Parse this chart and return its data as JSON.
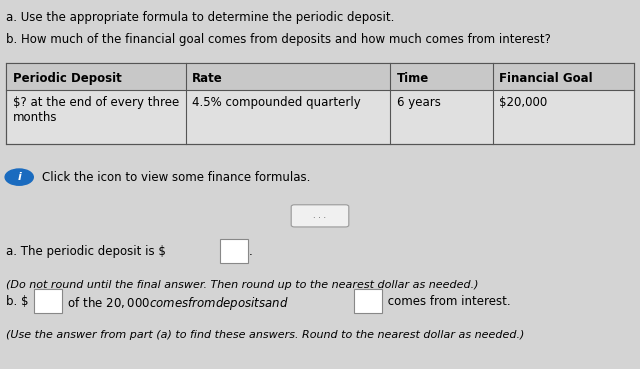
{
  "bg_color": "#d4d4d4",
  "title_lines": [
    "a. Use the appropriate formula to determine the periodic deposit.",
    "b. How much of the financial goal comes from deposits and how much comes from interest?"
  ],
  "table_headers": [
    "Periodic Deposit",
    "Rate",
    "Time",
    "Financial Goal"
  ],
  "table_row": [
    "$? at the end of every three\nmonths",
    "4.5% compounded quarterly",
    "6 years",
    "$20,000"
  ],
  "info_text": "Click the icon to view some finance formulas.",
  "answer_a_line": "a. The periodic deposit is $",
  "answer_a_note": "(Do not round until the final answer. Then round up to the nearest dollar as needed.)",
  "answer_b_line1_pre": "b. $",
  "answer_b_line1_mid": " of the $20,000 comes from deposits and $",
  "answer_b_line1_post": " comes from interest.",
  "answer_b_note": "(Use the answer from part (a) to find these answers. Round to the nearest dollar as needed.)",
  "text_color": "#000000",
  "box_color": "#ffffff",
  "info_icon_color": "#1a6bbf",
  "body_font_size": 8.5,
  "col_starts": [
    0.01,
    0.29,
    0.61,
    0.77
  ]
}
